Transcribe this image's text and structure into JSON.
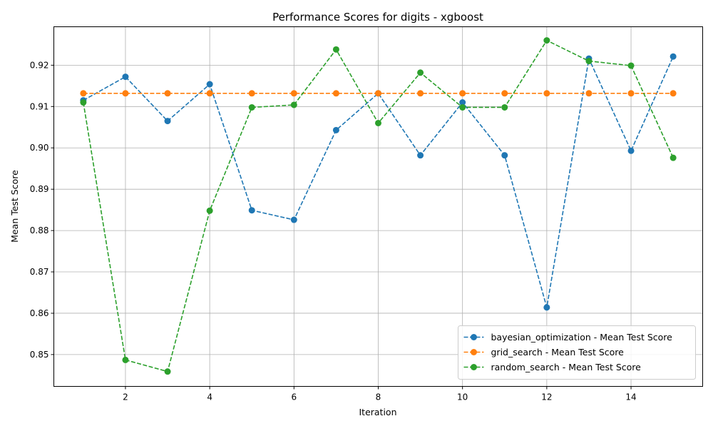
{
  "chart_data": {
    "type": "line",
    "title": "Performance Scores for digits - xgboost",
    "xlabel": "Iteration",
    "ylabel": "Mean Test Score",
    "xlim": [
      0.3,
      15.7
    ],
    "ylim": [
      0.8423,
      0.9293
    ],
    "xticks": [
      2,
      4,
      6,
      8,
      10,
      12,
      14
    ],
    "yticks": [
      0.85,
      0.86,
      0.87,
      0.88,
      0.89,
      0.9,
      0.91,
      0.92
    ],
    "ytick_labels": [
      "0.85",
      "0.86",
      "0.87",
      "0.88",
      "0.89",
      "0.90",
      "0.91",
      "0.92"
    ],
    "grid": true,
    "legend_position": "lower-right",
    "x": [
      1,
      2,
      3,
      4,
      5,
      6,
      7,
      8,
      9,
      10,
      11,
      12,
      13,
      14,
      15
    ],
    "series": [
      {
        "name": "bayesian_optimization - Mean Test Score",
        "color": "#1f77b4",
        "line_style": "dashed",
        "marker": "circle",
        "values": [
          0.9115,
          0.9172,
          0.9065,
          0.9154,
          0.8849,
          0.8826,
          0.9043,
          0.9132,
          0.8982,
          0.911,
          0.8982,
          0.8614,
          0.9216,
          0.8993,
          0.9221
        ]
      },
      {
        "name": "grid_search - Mean Test Score",
        "color": "#ff7f0e",
        "line_style": "dashed",
        "marker": "circle",
        "values": [
          0.9132,
          0.9132,
          0.9132,
          0.9132,
          0.9132,
          0.9132,
          0.9132,
          0.9132,
          0.9132,
          0.9132,
          0.9132,
          0.9132,
          0.9132,
          0.9132,
          0.9132
        ]
      },
      {
        "name": "random_search - Mean Test Score",
        "color": "#2ca02c",
        "line_style": "dashed",
        "marker": "circle",
        "values": [
          0.911,
          0.8487,
          0.8459,
          0.8848,
          0.9098,
          0.9104,
          0.9238,
          0.906,
          0.9182,
          0.9098,
          0.9098,
          0.926,
          0.921,
          0.9199,
          0.8976
        ]
      }
    ]
  }
}
